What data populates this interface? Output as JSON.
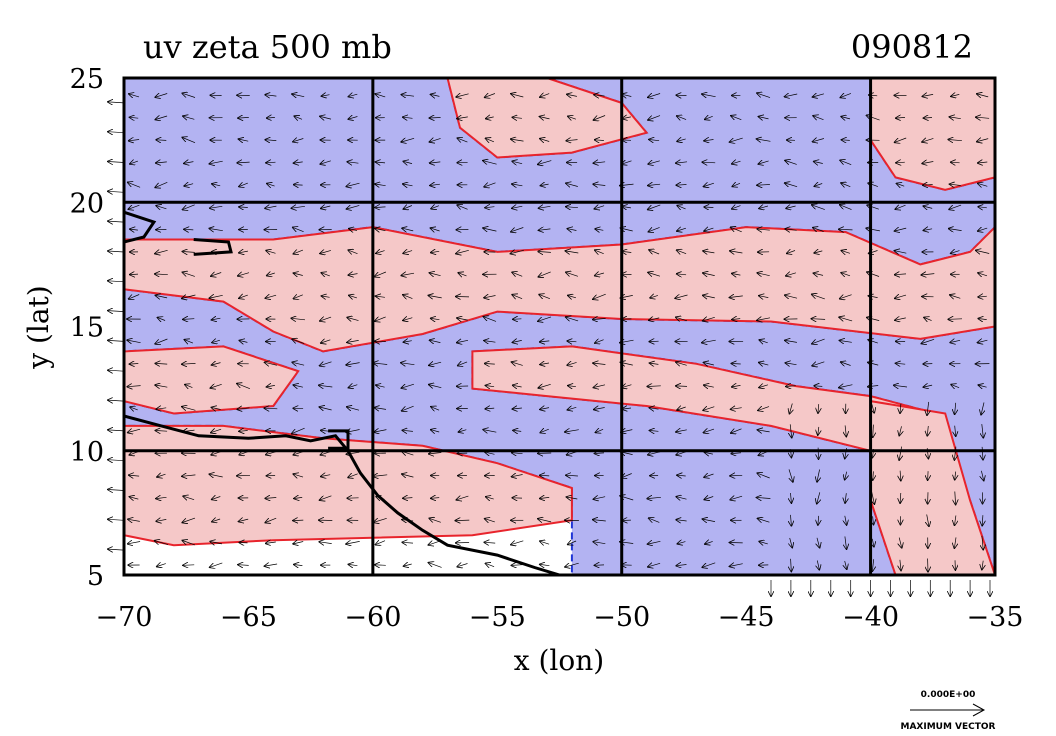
{
  "figure": {
    "title": "uv zeta 500 mb",
    "date_code": "090812",
    "x_axis_label": "x (lon)",
    "y_axis_label": "y (lat)",
    "legend": {
      "magnitude_text": "0.000E+00",
      "vector_label": "MAXIMUM VECTOR"
    },
    "colors": {
      "positive_fill": "#f5c8c8",
      "negative_fill": "#b3b3f2",
      "positive_contour": "#e8242c",
      "negative_contour": "#1f35d6",
      "coastline": "#000000"
    }
  },
  "chart_data": {
    "type": "map",
    "xlim": [
      -70,
      -35
    ],
    "ylim": [
      5,
      25
    ],
    "x_ticks": [
      -70,
      -65,
      -60,
      -55,
      -50,
      -45,
      -40,
      -35
    ],
    "x_tick_labels": [
      "−70",
      "−65",
      "−60",
      "−55",
      "−50",
      "−45",
      "−40",
      "−35"
    ],
    "y_ticks": [
      5,
      10,
      15,
      20,
      25
    ],
    "y_tick_labels": [
      "5",
      "10",
      "15",
      "20",
      "25"
    ],
    "gridlines_lon": [
      -60,
      -50,
      -40
    ],
    "gridlines_lat": [
      10,
      20
    ],
    "positive_regions": [
      [
        [
          -70,
          18.5
        ],
        [
          -64,
          18.5
        ],
        [
          -60,
          19
        ],
        [
          -55,
          18
        ],
        [
          -50,
          18.3
        ],
        [
          -45,
          19
        ],
        [
          -41,
          18.8
        ],
        [
          -38,
          17.5
        ],
        [
          -36,
          18
        ],
        [
          -35,
          19
        ],
        [
          -35,
          15
        ],
        [
          -38,
          14.5
        ],
        [
          -44,
          15.2
        ],
        [
          -50,
          15.3
        ],
        [
          -55,
          15.6
        ],
        [
          -58,
          14.7
        ],
        [
          -62,
          14
        ],
        [
          -64,
          14.8
        ],
        [
          -66,
          16
        ],
        [
          -70,
          16.5
        ]
      ],
      [
        [
          -57,
          25
        ],
        [
          -53,
          25
        ],
        [
          -50,
          24
        ],
        [
          -49,
          22.8
        ],
        [
          -52,
          22
        ],
        [
          -55,
          21.8
        ],
        [
          -56.5,
          23
        ]
      ],
      [
        [
          -40,
          25
        ],
        [
          -35,
          25
        ],
        [
          -35,
          21
        ],
        [
          -37,
          20.5
        ],
        [
          -39,
          21
        ],
        [
          -40,
          22.5
        ]
      ],
      [
        [
          -56,
          14
        ],
        [
          -52,
          14.2
        ],
        [
          -47,
          13.5
        ],
        [
          -43,
          12.6
        ],
        [
          -40,
          12.2
        ],
        [
          -37,
          11.4
        ],
        [
          -37,
          9.5
        ],
        [
          -40,
          10
        ],
        [
          -44,
          11
        ],
        [
          -49,
          11.8
        ],
        [
          -53,
          12.2
        ],
        [
          -56,
          12.5
        ]
      ],
      [
        [
          -40,
          12
        ],
        [
          -37,
          11.5
        ],
        [
          -36,
          8
        ],
        [
          -35,
          5
        ],
        [
          -39,
          5
        ],
        [
          -40,
          8
        ]
      ],
      [
        [
          -70,
          11
        ],
        [
          -66,
          11
        ],
        [
          -62,
          10.5
        ],
        [
          -58,
          10.2
        ],
        [
          -55,
          9.5
        ],
        [
          -52,
          8.5
        ],
        [
          -52,
          7.2
        ],
        [
          -56,
          6.6
        ],
        [
          -60,
          6.5
        ],
        [
          -64,
          6.4
        ],
        [
          -68,
          6.2
        ],
        [
          -70,
          6.6
        ]
      ],
      [
        [
          -70,
          14
        ],
        [
          -66,
          14.2
        ],
        [
          -63,
          13.2
        ],
        [
          -64,
          11.8
        ],
        [
          -68,
          11.5
        ],
        [
          -70,
          12
        ]
      ]
    ],
    "negative_regions": [
      [
        [
          -70,
          25
        ],
        [
          -57,
          25
        ],
        [
          -56.5,
          23
        ],
        [
          -55,
          21.8
        ],
        [
          -52,
          22
        ],
        [
          -49,
          22.8
        ],
        [
          -50,
          24
        ],
        [
          -53,
          25
        ],
        [
          -40,
          25
        ],
        [
          -40,
          22.5
        ],
        [
          -39,
          21
        ],
        [
          -37,
          20.5
        ],
        [
          -35,
          21
        ],
        [
          -35,
          19
        ],
        [
          -36,
          18
        ],
        [
          -38,
          17.5
        ],
        [
          -41,
          18.8
        ],
        [
          -45,
          19
        ],
        [
          -50,
          18.3
        ],
        [
          -55,
          18
        ],
        [
          -60,
          19
        ],
        [
          -64,
          18.5
        ],
        [
          -70,
          18.5
        ]
      ],
      [
        [
          -66,
          16
        ],
        [
          -64,
          14.8
        ],
        [
          -62,
          14
        ],
        [
          -58,
          14.7
        ],
        [
          -55,
          15.6
        ],
        [
          -50,
          15.3
        ],
        [
          -44,
          15.2
        ],
        [
          -38,
          14.5
        ],
        [
          -35,
          15
        ],
        [
          -35,
          5
        ],
        [
          -36,
          8
        ],
        [
          -37,
          9.5
        ],
        [
          -37,
          11.4
        ],
        [
          -40,
          12.2
        ],
        [
          -43,
          12.6
        ],
        [
          -47,
          13.5
        ],
        [
          -52,
          14.2
        ],
        [
          -56,
          14
        ],
        [
          -56,
          12.5
        ],
        [
          -53,
          12.2
        ],
        [
          -49,
          11.8
        ],
        [
          -44,
          11
        ],
        [
          -40,
          10
        ],
        [
          -40,
          8
        ],
        [
          -39,
          5
        ],
        [
          -52,
          5
        ],
        [
          -52,
          7.2
        ],
        [
          -52,
          8.5
        ],
        [
          -55,
          9.5
        ],
        [
          -58,
          10.2
        ],
        [
          -62,
          10.5
        ],
        [
          -66,
          11
        ],
        [
          -70,
          11
        ],
        [
          -70,
          12
        ],
        [
          -68,
          11.5
        ],
        [
          -64,
          11.8
        ],
        [
          -63,
          13.2
        ],
        [
          -66,
          14.2
        ],
        [
          -70,
          14
        ],
        [
          -70,
          16.5
        ]
      ]
    ],
    "coastlines": [
      [
        [
          -70,
          11.4
        ],
        [
          -68.5,
          11.0
        ],
        [
          -67,
          10.6
        ],
        [
          -65,
          10.5
        ],
        [
          -63.5,
          10.6
        ],
        [
          -62.5,
          10.4
        ],
        [
          -61.5,
          10.6
        ],
        [
          -61,
          10.0
        ],
        [
          -60.5,
          9.1
        ],
        [
          -59.8,
          8.2
        ],
        [
          -59,
          7.5
        ],
        [
          -58,
          6.8
        ],
        [
          -57,
          6.2
        ],
        [
          -55,
          5.8
        ],
        [
          -53.5,
          5.3
        ],
        [
          -52.5,
          5.0
        ]
      ],
      [
        [
          -70,
          19.6
        ],
        [
          -68.8,
          19.2
        ],
        [
          -69.2,
          18.6
        ],
        [
          -70,
          18.4
        ]
      ],
      [
        [
          -67.2,
          18.5
        ],
        [
          -65.8,
          18.4
        ],
        [
          -65.7,
          18.0
        ],
        [
          -67.2,
          17.9
        ]
      ],
      [
        [
          -61.8,
          10.8
        ],
        [
          -61.0,
          10.8
        ],
        [
          -61.0,
          10.1
        ],
        [
          -61.8,
          10.1
        ]
      ]
    ]
  }
}
